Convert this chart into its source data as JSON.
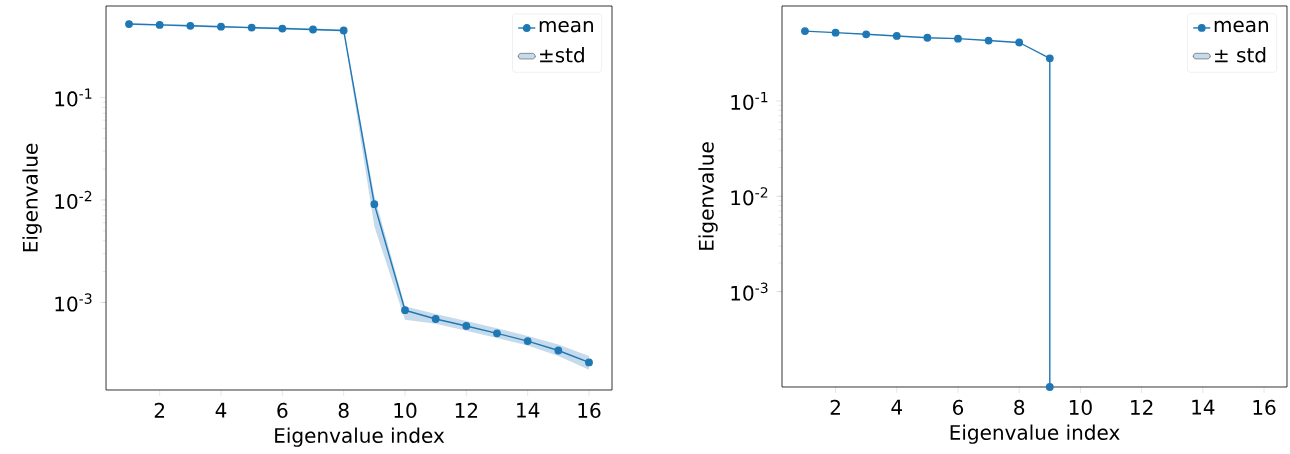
{
  "chart_data": [
    {
      "type": "line",
      "xlabel": "Eigenvalue index",
      "ylabel": "Eigenvalue",
      "log": "y",
      "legend": "top right",
      "line_style": "solid",
      "xlim": [
        0.25,
        16.75
      ],
      "xticks": [
        2,
        4,
        6,
        8,
        10,
        12,
        14,
        16
      ],
      "ylim": [
        0.00014,
        0.78
      ],
      "yticks": [
        {
          "value": 0.001,
          "label": "10$^{-3}$"
        },
        {
          "value": 0.01,
          "label": "10$^{-2}$"
        },
        {
          "value": 0.1,
          "label": "10$^{-1}$"
        }
      ],
      "series": [
        {
          "type": "line",
          "name": "mean",
          "color": "#1f77b4",
          "marker": "circle",
          "x": [
            1,
            2,
            3,
            4,
            5,
            6,
            7,
            8,
            9,
            10,
            11,
            12,
            13,
            14,
            15,
            16
          ],
          "values": [
            0.52,
            0.51,
            0.5,
            0.49,
            0.48,
            0.47,
            0.46,
            0.45,
            0.0091,
            0.00084,
            0.00069,
            0.00059,
            0.0005,
            0.00042,
            0.00034,
            0.00026
          ],
          "lower": [
            0.51,
            0.5,
            0.49,
            0.48,
            0.47,
            0.46,
            0.45,
            0.44,
            0.0055,
            0.00068,
            0.00062,
            0.00053,
            0.00045,
            0.00038,
            0.0003,
            0.00022
          ],
          "upper": [
            0.53,
            0.52,
            0.51,
            0.5,
            0.49,
            0.48,
            0.47,
            0.46,
            0.011,
            0.00092,
            0.00077,
            0.00066,
            0.00056,
            0.00047,
            0.00039,
            0.0003
          ]
        },
        {
          "type": "area",
          "name": "±std",
          "color": "#c5dbec"
        }
      ]
    },
    {
      "type": "line",
      "xlabel": "Eigenvalue index",
      "ylabel": "Eigenvalue",
      "log": "y",
      "legend": "top right",
      "line_style": "solid",
      "xlim": [
        0.25,
        16.75
      ],
      "xticks": [
        2,
        4,
        6,
        8,
        10,
        12,
        14,
        16
      ],
      "ylim": [
        0.0001,
        0.99
      ],
      "yticks": [
        {
          "value": 0.001,
          "label": "10$^{-3}$"
        },
        {
          "value": 0.01,
          "label": "10$^{-2}$"
        },
        {
          "value": 0.1,
          "label": "10$^{-1}$"
        }
      ],
      "series": [
        {
          "type": "line",
          "name": "mean",
          "color": "#1f77b4",
          "marker": "circle",
          "x": [
            1,
            2,
            3,
            4,
            5,
            6,
            7,
            8,
            9,
            9
          ],
          "values": [
            0.54,
            0.52,
            0.5,
            0.48,
            0.46,
            0.45,
            0.43,
            0.41,
            0.28,
            0.0001
          ]
        },
        {
          "type": "area",
          "name": "± std",
          "color": "#c5dbec"
        }
      ]
    }
  ]
}
